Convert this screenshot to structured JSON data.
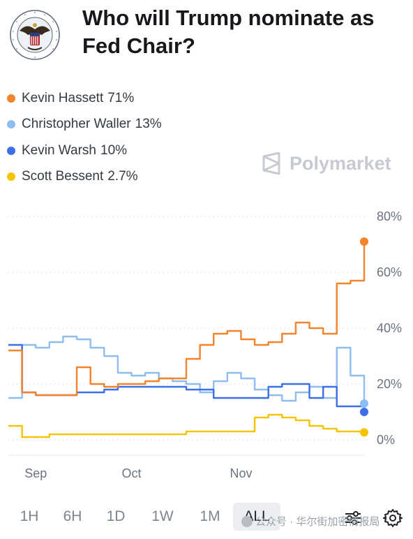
{
  "title": "Who will Trump nominate as Fed Chair?",
  "seal": {
    "text_top": "BOARD OF GOVERNORS",
    "text_bottom": "OF THE FEDERAL RESERVE SYSTEM"
  },
  "brand": "Polymarket",
  "legend": [
    {
      "name": "Kevin Hassett",
      "pct": "71%",
      "color": "#f5832a"
    },
    {
      "name": "Christopher Waller",
      "pct": "13%",
      "color": "#8ebdf2"
    },
    {
      "name": "Kevin Warsh",
      "pct": "10%",
      "color": "#3d6fe8"
    },
    {
      "name": "Scott Bessent",
      "pct": "2.7%",
      "color": "#f5c400"
    }
  ],
  "chart_data": {
    "type": "line",
    "ylim": [
      0,
      80
    ],
    "yticks": [
      "80%",
      "60%",
      "40%",
      "20%",
      "0%"
    ],
    "xticks": [
      "Sep",
      "Oct",
      "Nov"
    ],
    "x": [
      "Aug 20",
      "Aug 25",
      "Sep 1",
      "Sep 5",
      "Sep 8",
      "Sep 12",
      "Sep 15",
      "Sep 20",
      "Sep 25",
      "Sep 30",
      "Oct 5",
      "Oct 10",
      "Oct 12",
      "Oct 15",
      "Oct 20",
      "Oct 25",
      "Oct 28",
      "Nov 1",
      "Nov 5",
      "Nov 10",
      "Nov 15",
      "Nov 18",
      "Nov 22",
      "Nov 25",
      "Nov 28",
      "Nov 30",
      "Dec 2"
    ],
    "series": [
      {
        "name": "Kevin Hassett",
        "color": "#f5832a",
        "values": [
          32,
          17,
          16,
          16,
          16,
          26,
          20,
          19,
          20,
          20,
          21,
          22,
          22,
          29,
          34,
          38,
          39,
          36,
          34,
          35,
          38,
          42,
          40,
          38,
          56,
          57,
          71
        ]
      },
      {
        "name": "Christopher Waller",
        "color": "#8ebdf2",
        "values": [
          15,
          34,
          33,
          35,
          37,
          36,
          33,
          30,
          24,
          23,
          24,
          22,
          21,
          20,
          17,
          21,
          24,
          22,
          18,
          16,
          14,
          17,
          19,
          15,
          33,
          23,
          13
        ]
      },
      {
        "name": "Kevin Warsh",
        "color": "#3d6fe8",
        "values": [
          34,
          17,
          16,
          16,
          16,
          17,
          17,
          18,
          19,
          19,
          19,
          19,
          19,
          18,
          18,
          15,
          15,
          15,
          15,
          19,
          20,
          20,
          15,
          19,
          12,
          12,
          10
        ]
      },
      {
        "name": "Scott Bessent",
        "color": "#f5c400",
        "values": [
          5,
          1,
          1,
          2,
          2,
          2,
          2,
          2,
          2,
          2,
          2,
          2,
          2,
          3,
          3,
          3,
          3,
          3,
          8,
          9,
          8,
          7,
          5,
          4,
          3,
          3,
          2.7
        ]
      }
    ]
  },
  "timeframes": [
    {
      "label": "1H",
      "active": false
    },
    {
      "label": "6H",
      "active": false
    },
    {
      "label": "1D",
      "active": false
    },
    {
      "label": "1W",
      "active": false
    },
    {
      "label": "1M",
      "active": false
    },
    {
      "label": "ALL",
      "active": true
    }
  ],
  "icons": {
    "filter": "sliders-icon",
    "settings": "gear-icon"
  },
  "watermark": "公众号 · 华尔街加密情报局"
}
